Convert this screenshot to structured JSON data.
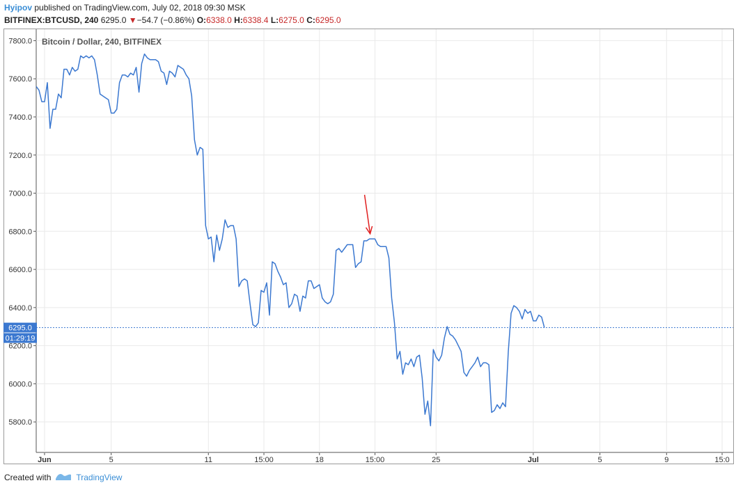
{
  "header": {
    "author": "Hyipov",
    "published": "published on TradingView.com, July 02, 2018 09:30 MSK"
  },
  "quote": {
    "symbol": "BITFINEX:BTCUSD, 240",
    "last": "6295.0",
    "change": "−54.7 (−0.86%)",
    "o_label": "O:",
    "o": "6338.0",
    "h_label": "H:",
    "h": "6338.4",
    "l_label": "L:",
    "l": "6275.0",
    "c_label": "C:",
    "c": "6295.0"
  },
  "footer": {
    "created_with": "Created with",
    "brand": "TradingView"
  },
  "colors": {
    "line": "#3b78d0",
    "grid": "#e9e9e9",
    "arrow": "#e02020",
    "price_tag": "#3b78d0",
    "down": "#c62828",
    "brand": "#3a8ed6"
  },
  "chart_data": {
    "type": "line",
    "title": "Bitcoin / Dollar, 240, BITFINEX",
    "ylim": [
      5640,
      7860
    ],
    "y_ticks": [
      5800,
      6000,
      6200,
      6400,
      6600,
      6800,
      7000,
      7200,
      7400,
      7600,
      7800
    ],
    "x_ticks": [
      {
        "label": "Jun",
        "i": 3,
        "bold": true
      },
      {
        "label": "5",
        "i": 27
      },
      {
        "label": "11",
        "i": 62
      },
      {
        "label": "15:00",
        "i": 82
      },
      {
        "label": "18",
        "i": 102
      },
      {
        "label": "15:00",
        "i": 122
      },
      {
        "label": "25",
        "i": 144
      },
      {
        "label": "Jul",
        "i": 179,
        "bold": true
      },
      {
        "label": "5",
        "i": 203
      },
      {
        "label": "9",
        "i": 227
      },
      {
        "label": "15:0",
        "i": 247
      }
    ],
    "x_range": [
      0,
      251
    ],
    "values": [
      7560,
      7540,
      7480,
      7480,
      7580,
      7340,
      7440,
      7440,
      7520,
      7500,
      7650,
      7650,
      7620,
      7660,
      7640,
      7650,
      7720,
      7710,
      7720,
      7710,
      7720,
      7700,
      7620,
      7520,
      7510,
      7500,
      7490,
      7420,
      7420,
      7440,
      7580,
      7620,
      7620,
      7610,
      7630,
      7620,
      7660,
      7530,
      7680,
      7730,
      7710,
      7700,
      7700,
      7700,
      7690,
      7640,
      7630,
      7570,
      7640,
      7630,
      7610,
      7670,
      7660,
      7650,
      7620,
      7600,
      7510,
      7280,
      7200,
      7240,
      7230,
      6830,
      6760,
      6770,
      6640,
      6780,
      6700,
      6760,
      6860,
      6820,
      6830,
      6830,
      6760,
      6510,
      6540,
      6550,
      6540,
      6420,
      6310,
      6300,
      6320,
      6490,
      6480,
      6530,
      6360,
      6640,
      6630,
      6590,
      6560,
      6520,
      6530,
      6400,
      6420,
      6470,
      6460,
      6380,
      6460,
      6450,
      6540,
      6540,
      6500,
      6510,
      6520,
      6450,
      6430,
      6420,
      6430,
      6470,
      6700,
      6710,
      6690,
      6710,
      6730,
      6730,
      6730,
      6610,
      6630,
      6640,
      6750,
      6750,
      6760,
      6760,
      6760,
      6730,
      6720,
      6720,
      6720,
      6660,
      6450,
      6320,
      6130,
      6170,
      6050,
      6110,
      6100,
      6130,
      6090,
      6140,
      6150,
      6030,
      5840,
      5910,
      5780,
      6180,
      6140,
      6120,
      6150,
      6240,
      6300,
      6260,
      6250,
      6230,
      6200,
      6170,
      6060,
      6040,
      6070,
      6090,
      6110,
      6140,
      6090,
      6110,
      6110,
      6100,
      5850,
      5860,
      5890,
      5870,
      5900,
      5880,
      6170,
      6370,
      6410,
      6400,
      6380,
      6340,
      6390,
      6370,
      6380,
      6330,
      6330,
      6360,
      6350,
      6295
    ],
    "last_value": 6295.0,
    "last_label": "6295.0",
    "countdown": "01:29:19",
    "annotation": {
      "type": "arrow",
      "at_index": 121,
      "value": 6765
    }
  }
}
